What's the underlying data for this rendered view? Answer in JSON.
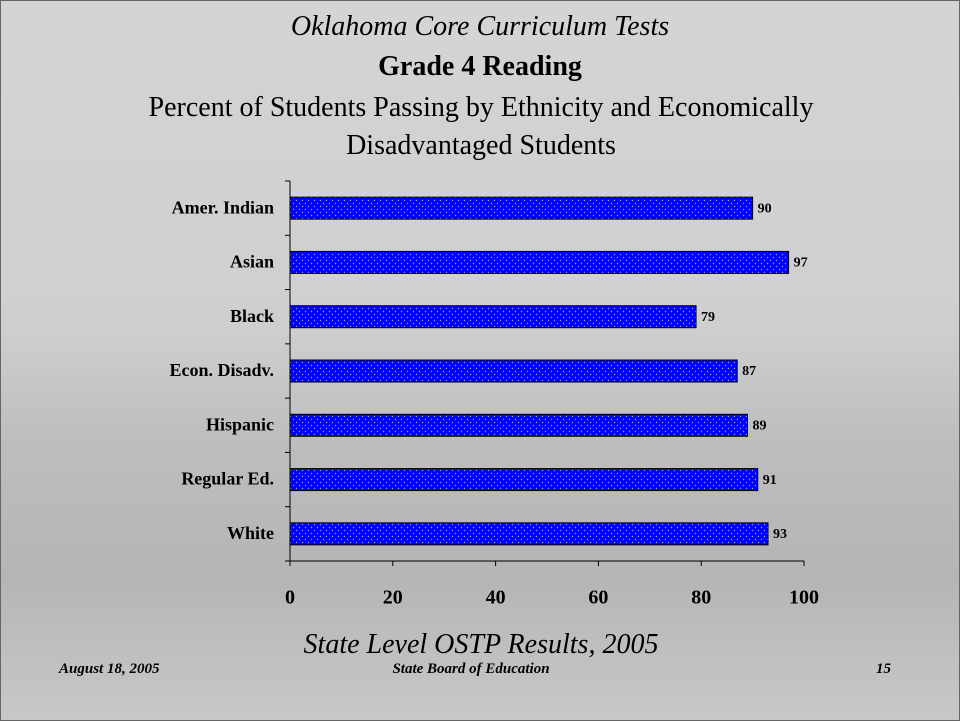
{
  "chart_data": {
    "type": "bar",
    "orientation": "horizontal",
    "supertitle": "Oklahoma Core Curriculum Tests",
    "title": "Grade 4 Reading",
    "subtitle": "Percent of Students Passing by Ethnicity and Economically Disadvantaged Students",
    "caption": "State Level OSTP Results, 2005",
    "categories": [
      "Amer. Indian",
      "Asian",
      "Black",
      "Econ. Disadv.",
      "Hispanic",
      "Regular Ed.",
      "White"
    ],
    "values": [
      90,
      97,
      79,
      87,
      89,
      91,
      93
    ],
    "color": "#0000ff",
    "xlim": [
      0,
      100
    ],
    "xticks": [
      0,
      20,
      40,
      60,
      80,
      100
    ]
  },
  "footer": {
    "date": "August 18, 2005",
    "organization": "State Board of Education",
    "page": "15"
  }
}
